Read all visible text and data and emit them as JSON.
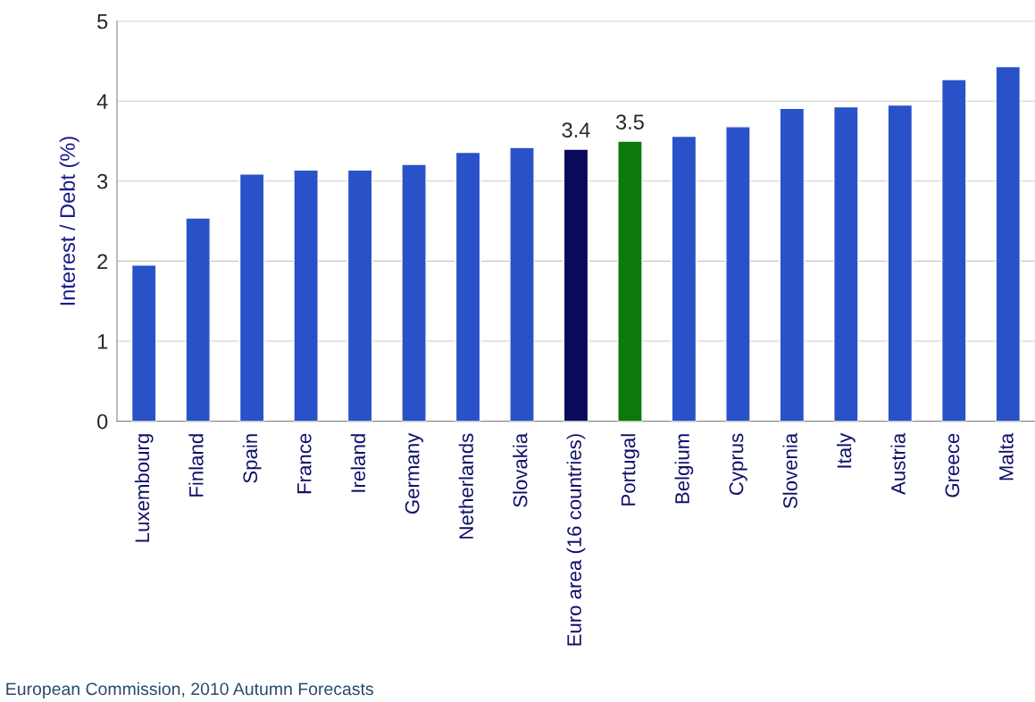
{
  "chart_data": {
    "type": "bar",
    "ylabel": "Interest / Debt (%)",
    "categories": [
      "Luxembourg",
      "Finland",
      "Spain",
      "France",
      "Ireland",
      "Germany",
      "Netherlands",
      "Slovakia",
      "Euro area (16 countries)",
      "Portugal",
      "Belgium",
      "Cyprus",
      "Slovenia",
      "Italy",
      "Austria",
      "Greece",
      "Malta"
    ],
    "values": [
      1.95,
      2.54,
      3.09,
      3.14,
      3.14,
      3.21,
      3.36,
      3.42,
      3.4,
      3.5,
      3.56,
      3.68,
      3.91,
      3.93,
      3.95,
      4.27,
      4.43
    ],
    "colors": [
      "#2a52c8",
      "#2a52c8",
      "#2a52c8",
      "#2a52c8",
      "#2a52c8",
      "#2a52c8",
      "#2a52c8",
      "#2a52c8",
      "#0a0a5c",
      "#0b7a0b",
      "#2a52c8",
      "#2a52c8",
      "#2a52c8",
      "#2a52c8",
      "#2a52c8",
      "#2a52c8",
      "#2a52c8"
    ],
    "value_labels": [
      null,
      null,
      null,
      null,
      null,
      null,
      null,
      null,
      "3.4",
      "3.5",
      null,
      null,
      null,
      null,
      null,
      null,
      null
    ],
    "ylim": [
      0,
      5
    ],
    "yticks": [
      0,
      1,
      2,
      3,
      4,
      5
    ],
    "grid": "y",
    "legend": false,
    "annotations": [
      "European Commission, 2010 Autumn Forecasts"
    ]
  }
}
